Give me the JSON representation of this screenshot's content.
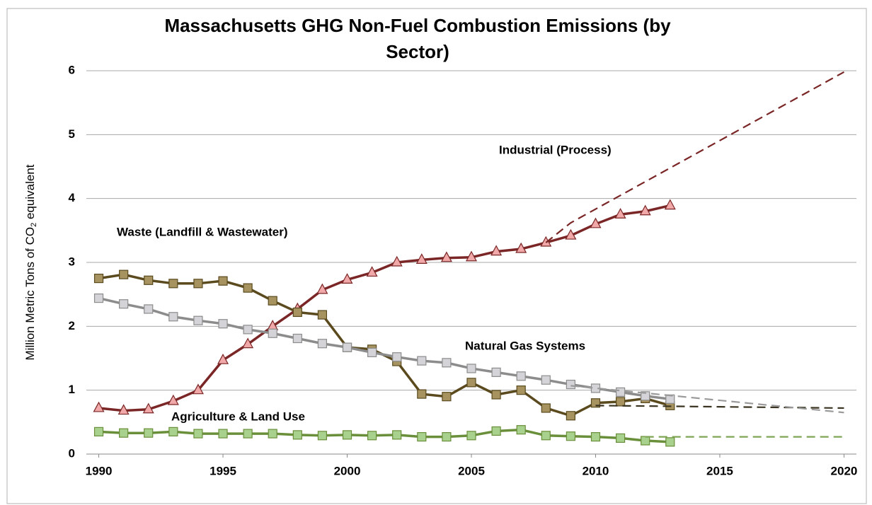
{
  "chart_data": {
    "type": "line",
    "title": [
      "Massachusetts GHG Non-Fuel Combustion Emissions (by",
      "Sector)"
    ],
    "y_label": [
      "Million Metric Tons of CO",
      "2",
      " equivalent"
    ],
    "xlim": [
      1989.5,
      2020.5
    ],
    "xticks": [
      1990,
      1995,
      2000,
      2005,
      2010,
      2015,
      2020
    ],
    "ylim": [
      0,
      6
    ],
    "yticks": [
      0,
      1,
      2,
      3,
      4,
      5,
      6
    ],
    "grid": true,
    "annotations": [
      "Industrial (Process)",
      "Waste (Landfill & Wastewater)",
      "Natural Gas Systems",
      "Agriculture & Land Use"
    ],
    "series": [
      {
        "name": "Industrial (Process)",
        "color": "#7b2626",
        "marker": "triangle",
        "marker_color": "#f0a8a8",
        "x": [
          1990,
          1991,
          1992,
          1993,
          1994,
          1995,
          1996,
          1997,
          1998,
          1999,
          2000,
          2001,
          2002,
          2003,
          2004,
          2005,
          2006,
          2007,
          2008,
          2009,
          2010,
          2011,
          2012,
          2013
        ],
        "values": [
          0.72,
          0.68,
          0.7,
          0.83,
          1.0,
          1.47,
          1.72,
          2.0,
          2.27,
          2.57,
          2.73,
          2.84,
          3.0,
          3.04,
          3.07,
          3.08,
          3.17,
          3.21,
          3.31,
          3.42,
          3.6,
          3.75,
          3.8,
          3.89
        ]
      },
      {
        "name": "Waste (Landfill & Wastewater)",
        "color": "#5a4a1e",
        "marker": "square",
        "marker_color": "#a69360",
        "x": [
          1990,
          1991,
          1992,
          1993,
          1994,
          1995,
          1996,
          1997,
          1998,
          1999,
          2000,
          2001,
          2002,
          2003,
          2004,
          2005,
          2006,
          2007,
          2008,
          2009,
          2010,
          2011,
          2012,
          2013
        ],
        "values": [
          2.75,
          2.81,
          2.72,
          2.67,
          2.67,
          2.71,
          2.6,
          2.4,
          2.22,
          2.18,
          1.67,
          1.64,
          1.45,
          0.94,
          0.9,
          1.12,
          0.93,
          1.0,
          0.72,
          0.6,
          0.8,
          0.82,
          0.87,
          0.76
        ]
      },
      {
        "name": "Natural Gas Systems",
        "color": "#8c8c8c",
        "marker": "square",
        "marker_color": "#d4d4d8",
        "x": [
          1990,
          1991,
          1992,
          1993,
          1994,
          1995,
          1996,
          1997,
          1998,
          1999,
          2000,
          2001,
          2002,
          2003,
          2004,
          2005,
          2006,
          2007,
          2008,
          2009,
          2010,
          2011,
          2012,
          2013
        ],
        "values": [
          2.44,
          2.35,
          2.27,
          2.15,
          2.09,
          2.04,
          1.95,
          1.89,
          1.81,
          1.73,
          1.67,
          1.59,
          1.52,
          1.46,
          1.43,
          1.34,
          1.28,
          1.22,
          1.16,
          1.09,
          1.03,
          0.97,
          0.91,
          0.86
        ]
      },
      {
        "name": "Agriculture & Land Use",
        "color": "#6a8f3a",
        "marker": "square",
        "marker_color": "#a9d18e",
        "x": [
          1990,
          1991,
          1992,
          1993,
          1994,
          1995,
          1996,
          1997,
          1998,
          1999,
          2000,
          2001,
          2002,
          2003,
          2004,
          2005,
          2006,
          2007,
          2008,
          2009,
          2010,
          2011,
          2012,
          2013
        ],
        "values": [
          0.35,
          0.33,
          0.33,
          0.35,
          0.32,
          0.32,
          0.32,
          0.32,
          0.3,
          0.29,
          0.3,
          0.29,
          0.3,
          0.27,
          0.27,
          0.29,
          0.36,
          0.38,
          0.29,
          0.28,
          0.27,
          0.25,
          0.21,
          0.19
        ]
      },
      {
        "color": "#7b2626",
        "dashed": true,
        "x": [
          2008,
          2009,
          2020
        ],
        "values": [
          3.31,
          3.62,
          5.98
        ]
      },
      {
        "color": "#3a3320",
        "dashed": true,
        "x": [
          2010,
          2020
        ],
        "values": [
          0.76,
          0.72
        ]
      },
      {
        "color": "#9a9a9a",
        "dashed": true,
        "x": [
          2009,
          2020
        ],
        "values": [
          1.07,
          0.65
        ]
      },
      {
        "color": "#7fa656",
        "dashed": true,
        "x": [
          2012,
          2020
        ],
        "values": [
          0.27,
          0.27
        ]
      }
    ]
  }
}
